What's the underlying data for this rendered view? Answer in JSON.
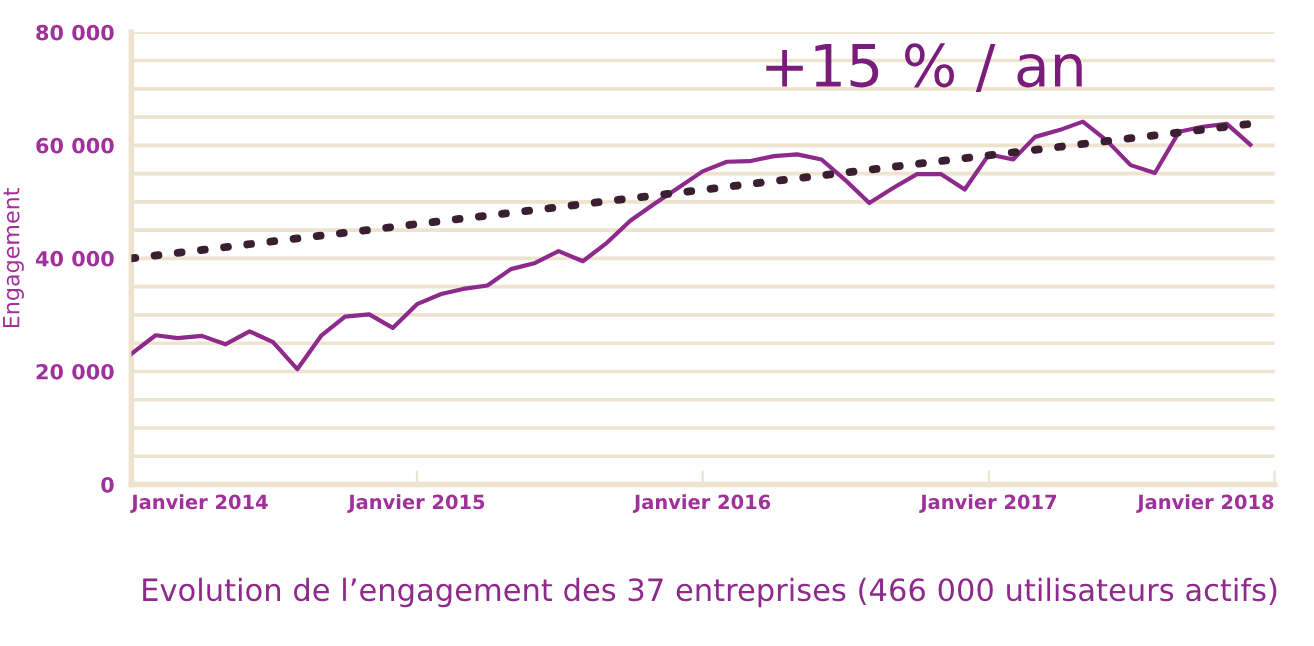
{
  "chart_data": {
    "type": "line",
    "title": "Evolution de l’engagement des 37 entreprises (466 000 utilisateurs actifs)",
    "ylabel": "Engagement",
    "annotations": [
      "+15 % / an"
    ],
    "x": [
      "2014-01",
      "2014-02",
      "2014-03",
      "2014-04",
      "2014-05",
      "2014-06",
      "2014-07",
      "2014-08",
      "2014-09",
      "2014-10",
      "2014-11",
      "2014-12",
      "2015-01",
      "2015-02",
      "2015-03",
      "2015-04",
      "2015-05",
      "2015-06",
      "2015-07",
      "2015-08",
      "2015-09",
      "2015-10",
      "2015-11",
      "2015-12",
      "2016-01",
      "2016-02",
      "2016-03",
      "2016-04",
      "2016-05",
      "2016-06",
      "2016-07",
      "2016-08",
      "2016-09",
      "2016-10",
      "2016-11",
      "2016-12",
      "2017-01",
      "2017-02",
      "2017-03",
      "2017-04",
      "2017-05",
      "2017-06",
      "2017-07",
      "2017-08",
      "2017-09",
      "2017-10",
      "2017-11",
      "2017-12"
    ],
    "series": [
      {
        "color": "#8e2a8b",
        "line_style": "solid",
        "values": [
          23100,
          26400,
          25900,
          26300,
          24800,
          27100,
          25200,
          20400,
          26400,
          29700,
          30100,
          27700,
          31900,
          33700,
          34600,
          35200,
          38100,
          39200,
          41300,
          39500,
          42800,
          46700,
          49700,
          52500,
          55400,
          57100,
          57200,
          58100,
          58400,
          57500,
          53900,
          49800,
          52500,
          54900,
          54900,
          52200,
          58400,
          57500,
          61500,
          62700,
          64200,
          60800,
          56500,
          55100,
          62400,
          63300,
          63800,
          60100
        ]
      },
      {
        "color": "#3a1f33",
        "line_style": "dotted",
        "x": [
          "2014-01",
          "2017-12"
        ],
        "values": [
          40000,
          63800
        ]
      }
    ],
    "xlim": [
      "2014-01",
      "2018-01"
    ],
    "xticks": [
      {
        "value": "2014-01",
        "label": "Janvier 2014"
      },
      {
        "value": "2015-01",
        "label": "Janvier 2015"
      },
      {
        "value": "2016-01",
        "label": "Janvier 2016"
      },
      {
        "value": "2017-01",
        "label": "Janvier 2017"
      },
      {
        "value": "2018-01",
        "label": "Janvier 2018"
      }
    ],
    "ylim": [
      0,
      80000
    ],
    "yticks": [
      {
        "value": 0,
        "label": "0"
      },
      {
        "value": 5000,
        "label": null
      },
      {
        "value": 10000,
        "label": null
      },
      {
        "value": 15000,
        "label": null
      },
      {
        "value": 20000,
        "label": "20 000"
      },
      {
        "value": 25000,
        "label": null
      },
      {
        "value": 30000,
        "label": null
      },
      {
        "value": 35000,
        "label": null
      },
      {
        "value": 40000,
        "label": "40 000"
      },
      {
        "value": 45000,
        "label": null
      },
      {
        "value": 50000,
        "label": null
      },
      {
        "value": 55000,
        "label": null
      },
      {
        "value": 60000,
        "label": "60 000"
      },
      {
        "value": 65000,
        "label": null
      },
      {
        "value": 70000,
        "label": null
      },
      {
        "value": 75000,
        "label": null
      },
      {
        "value": 80000,
        "label": "80 000"
      }
    ],
    "grid": "y",
    "legend": false,
    "marker": "none"
  }
}
